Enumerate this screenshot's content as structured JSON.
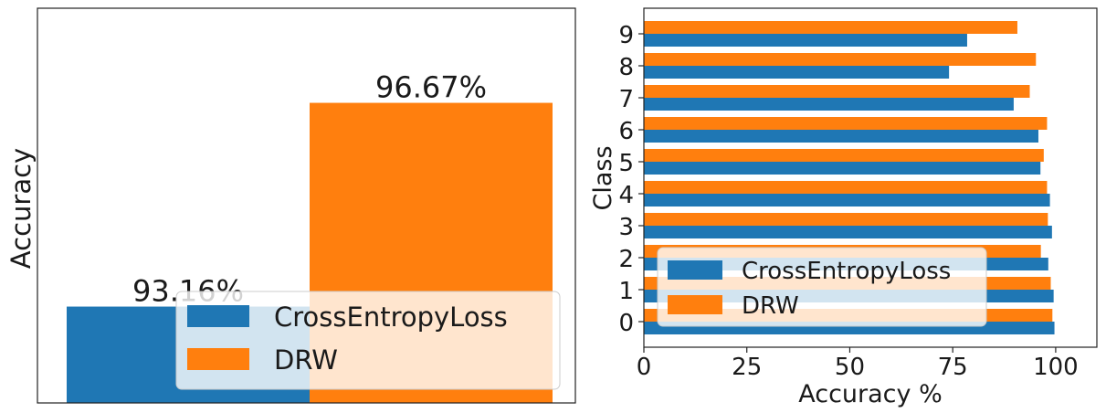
{
  "colors": {
    "cross_entropy": "#1f77b4",
    "drw": "#ff7f0e"
  },
  "chart_data": [
    {
      "type": "bar",
      "title": "",
      "xlabel": "",
      "ylabel": "Accuracy",
      "categories": [
        "CrossEntropyLoss",
        "DRW"
      ],
      "values": [
        93.16,
        96.67
      ],
      "data_labels": [
        "93.16%",
        "96.67%"
      ],
      "ylim": [
        91.5,
        98.3
      ],
      "grid": false,
      "legend": {
        "position": "lower-right",
        "entries": [
          "CrossEntropyLoss",
          "DRW"
        ]
      }
    },
    {
      "type": "bar",
      "orientation": "horizontal",
      "title": "",
      "xlabel": "Accuracy %",
      "ylabel": "Class",
      "categories": [
        "0",
        "1",
        "2",
        "3",
        "4",
        "5",
        "6",
        "7",
        "8",
        "9"
      ],
      "series": [
        {
          "name": "CrossEntropyLoss",
          "values": [
            99.7,
            99.5,
            98.2,
            99.1,
            98.6,
            96.3,
            95.8,
            89.8,
            74.1,
            78.5
          ]
        },
        {
          "name": "DRW",
          "values": [
            99.2,
            98.8,
            96.4,
            98.1,
            97.9,
            97.1,
            97.9,
            93.7,
            95.2,
            90.7
          ]
        }
      ],
      "xlim": [
        0,
        110
      ],
      "xticks": [
        "0",
        "25",
        "50",
        "75",
        "100"
      ],
      "grid": false,
      "legend": {
        "position": "lower-left",
        "entries": [
          "CrossEntropyLoss",
          "DRW"
        ]
      }
    }
  ]
}
